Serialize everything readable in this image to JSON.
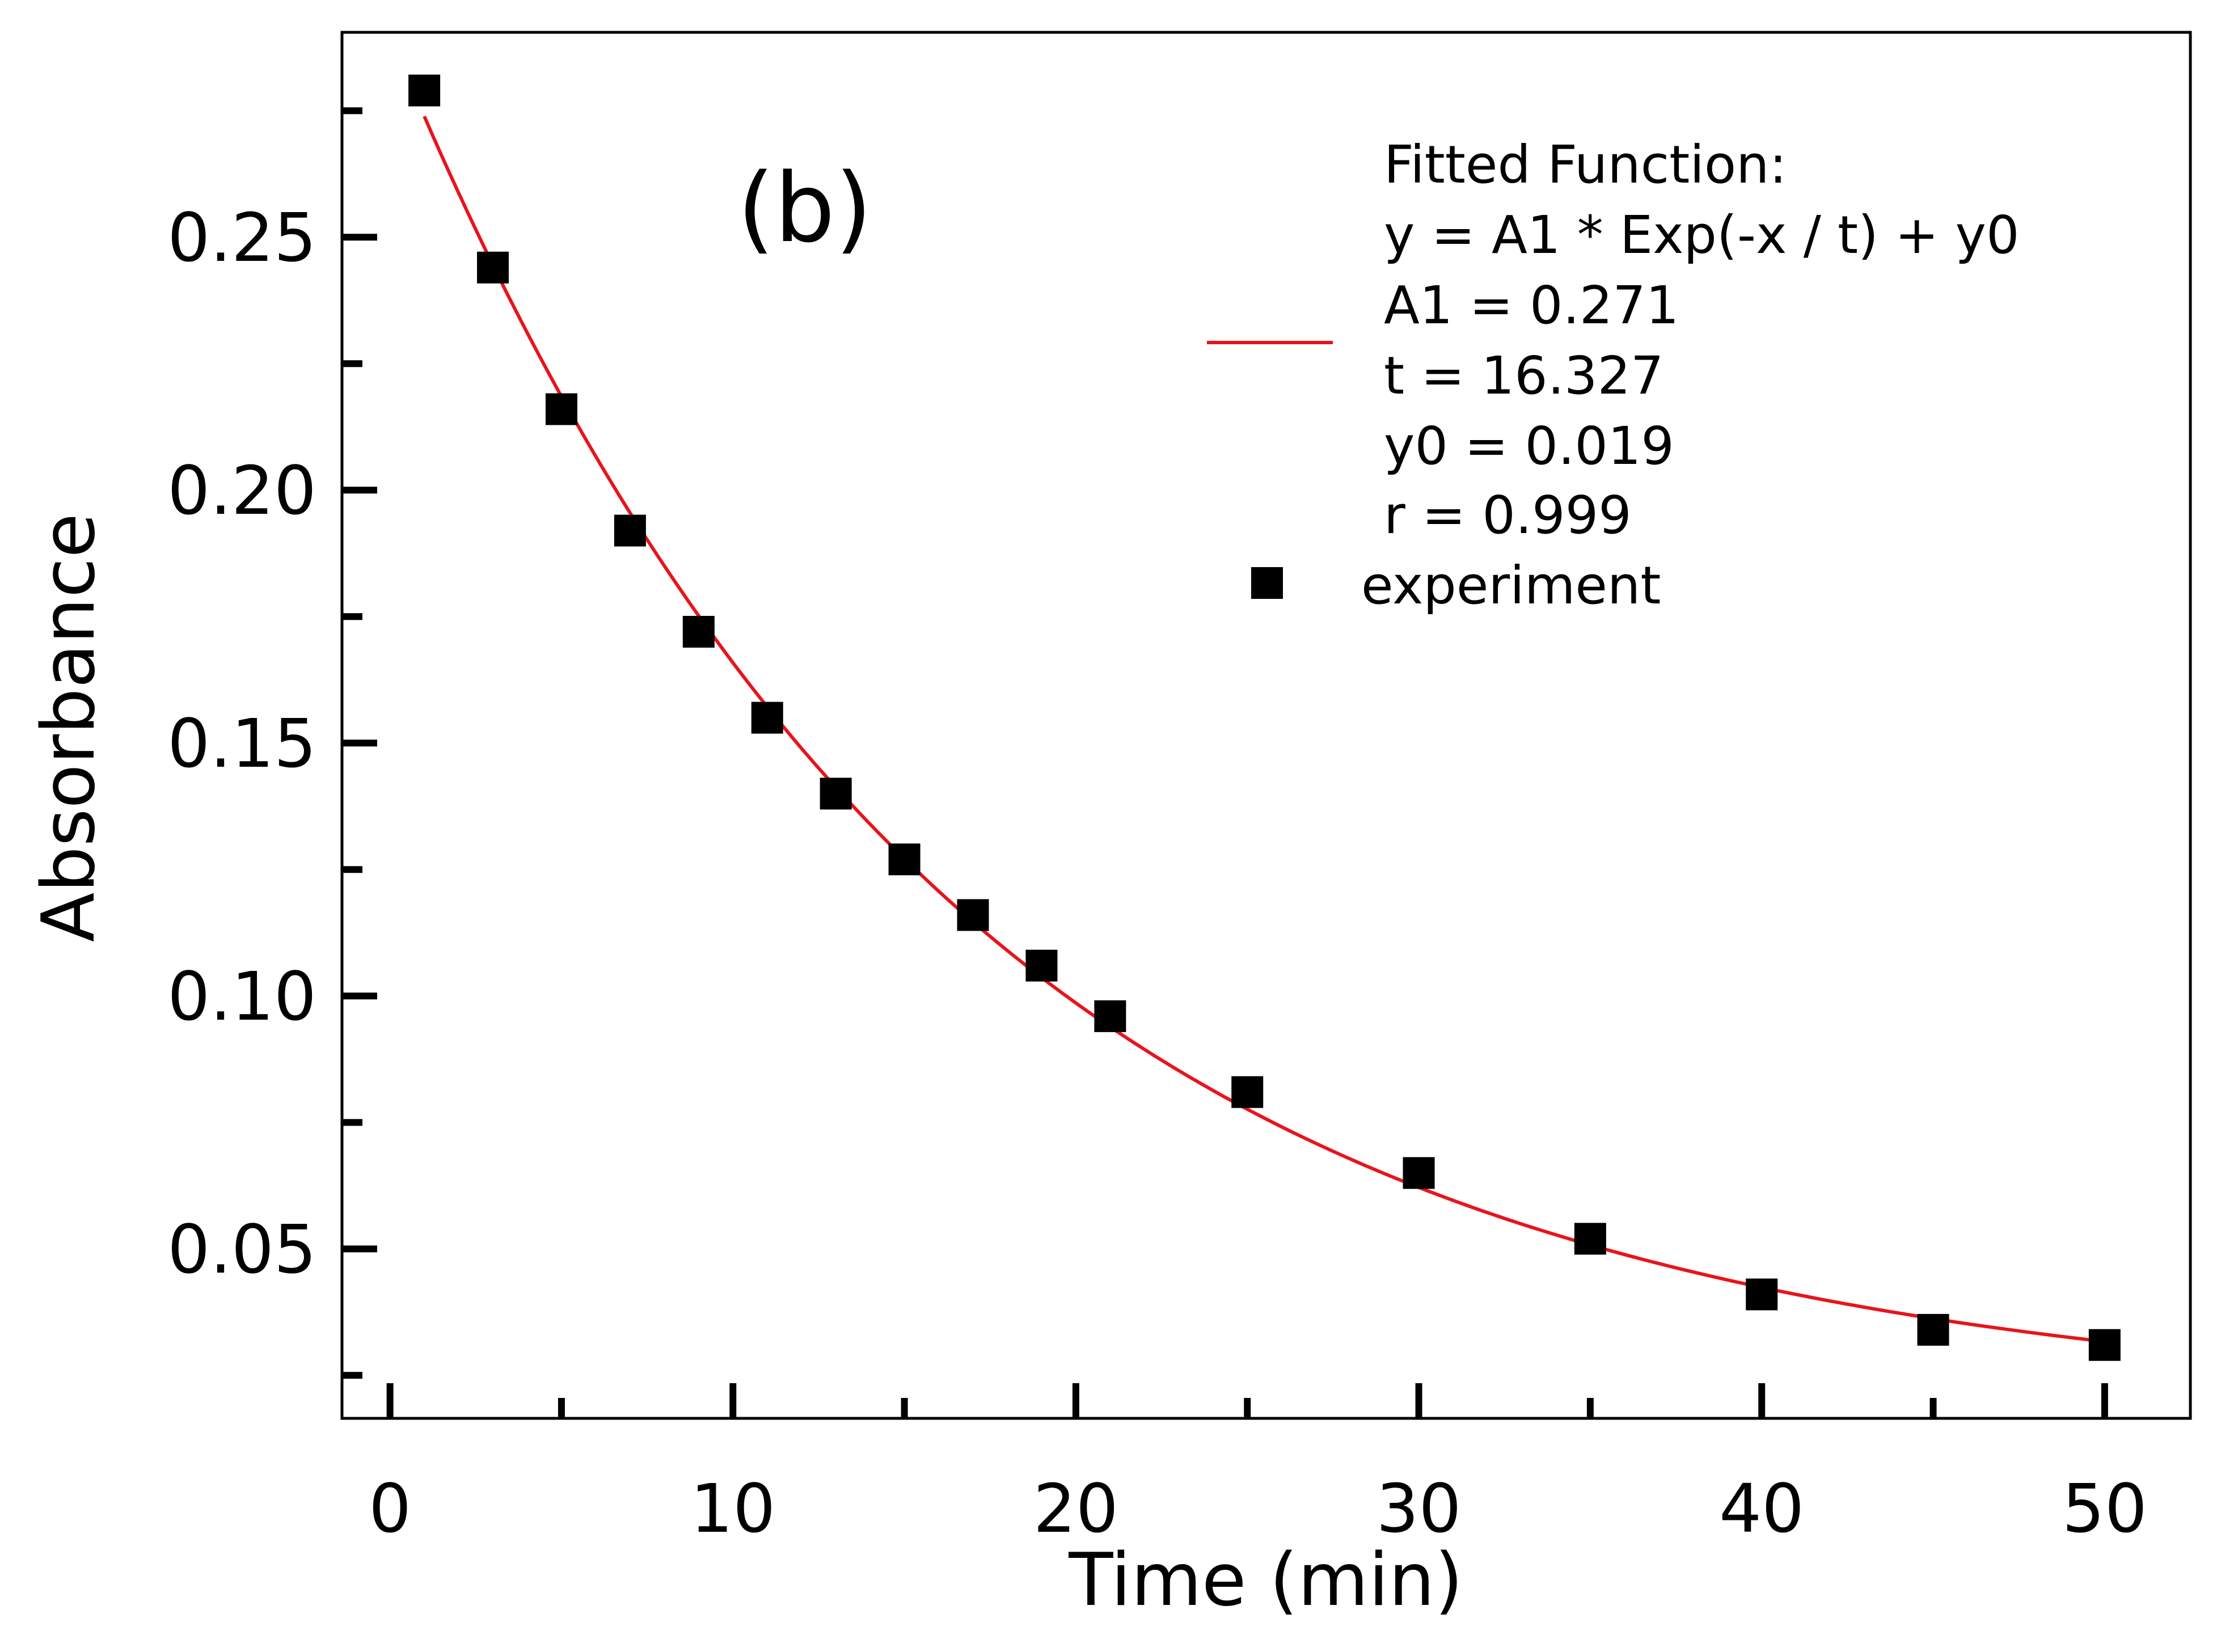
{
  "chart_data": {
    "type": "scatter",
    "xlabel": "Time (min)",
    "ylabel": "Absorbance",
    "panel_label": "(b)",
    "xlim": [
      -1.4,
      52.5
    ],
    "ylim": [
      0.0165,
      0.2905
    ],
    "x_ticks": [
      0,
      10,
      20,
      30,
      40,
      50
    ],
    "x_tick_labels": [
      "0",
      "10",
      "20",
      "30",
      "40",
      "50"
    ],
    "x_minor_ticks": [
      5,
      15,
      25,
      35,
      45
    ],
    "y_ticks": [
      0.05,
      0.1,
      0.15,
      0.2,
      0.25
    ],
    "y_tick_labels": [
      "0.05",
      "0.10",
      "0.15",
      "0.20",
      "0.25"
    ],
    "y_minor_ticks": [
      0.025,
      0.075,
      0.125,
      0.175,
      0.225,
      0.275
    ],
    "grid": false,
    "legend_position": "top-right",
    "legend": {
      "fit_lines": [
        "Fitted Function:",
        "y = A1 * Exp(-x / t) + y0",
        "A1 = 0.271",
        "t = 16.327",
        "y0 = 0.019",
        "r = 0.999"
      ],
      "experiment_label": "experiment"
    },
    "series": [
      {
        "name": "experiment",
        "kind": "scatter",
        "marker": "square",
        "color": "#000000",
        "x": [
          1,
          3,
          5,
          7,
          9,
          11,
          13,
          15,
          17,
          19,
          21,
          25,
          30,
          35,
          40,
          45,
          50
        ],
        "y": [
          0.279,
          0.244,
          0.216,
          0.192,
          0.172,
          0.155,
          0.14,
          0.127,
          0.116,
          0.106,
          0.096,
          0.081,
          0.065,
          0.052,
          0.041,
          0.034,
          0.031
        ]
      },
      {
        "name": "Fitted Function",
        "kind": "line",
        "color": "#e8141c",
        "function": "A1*exp(-x/t)+y0",
        "params": {
          "A1": 0.271,
          "t": 16.327,
          "y0": 0.019
        },
        "x_range": [
          1,
          50
        ]
      }
    ]
  }
}
